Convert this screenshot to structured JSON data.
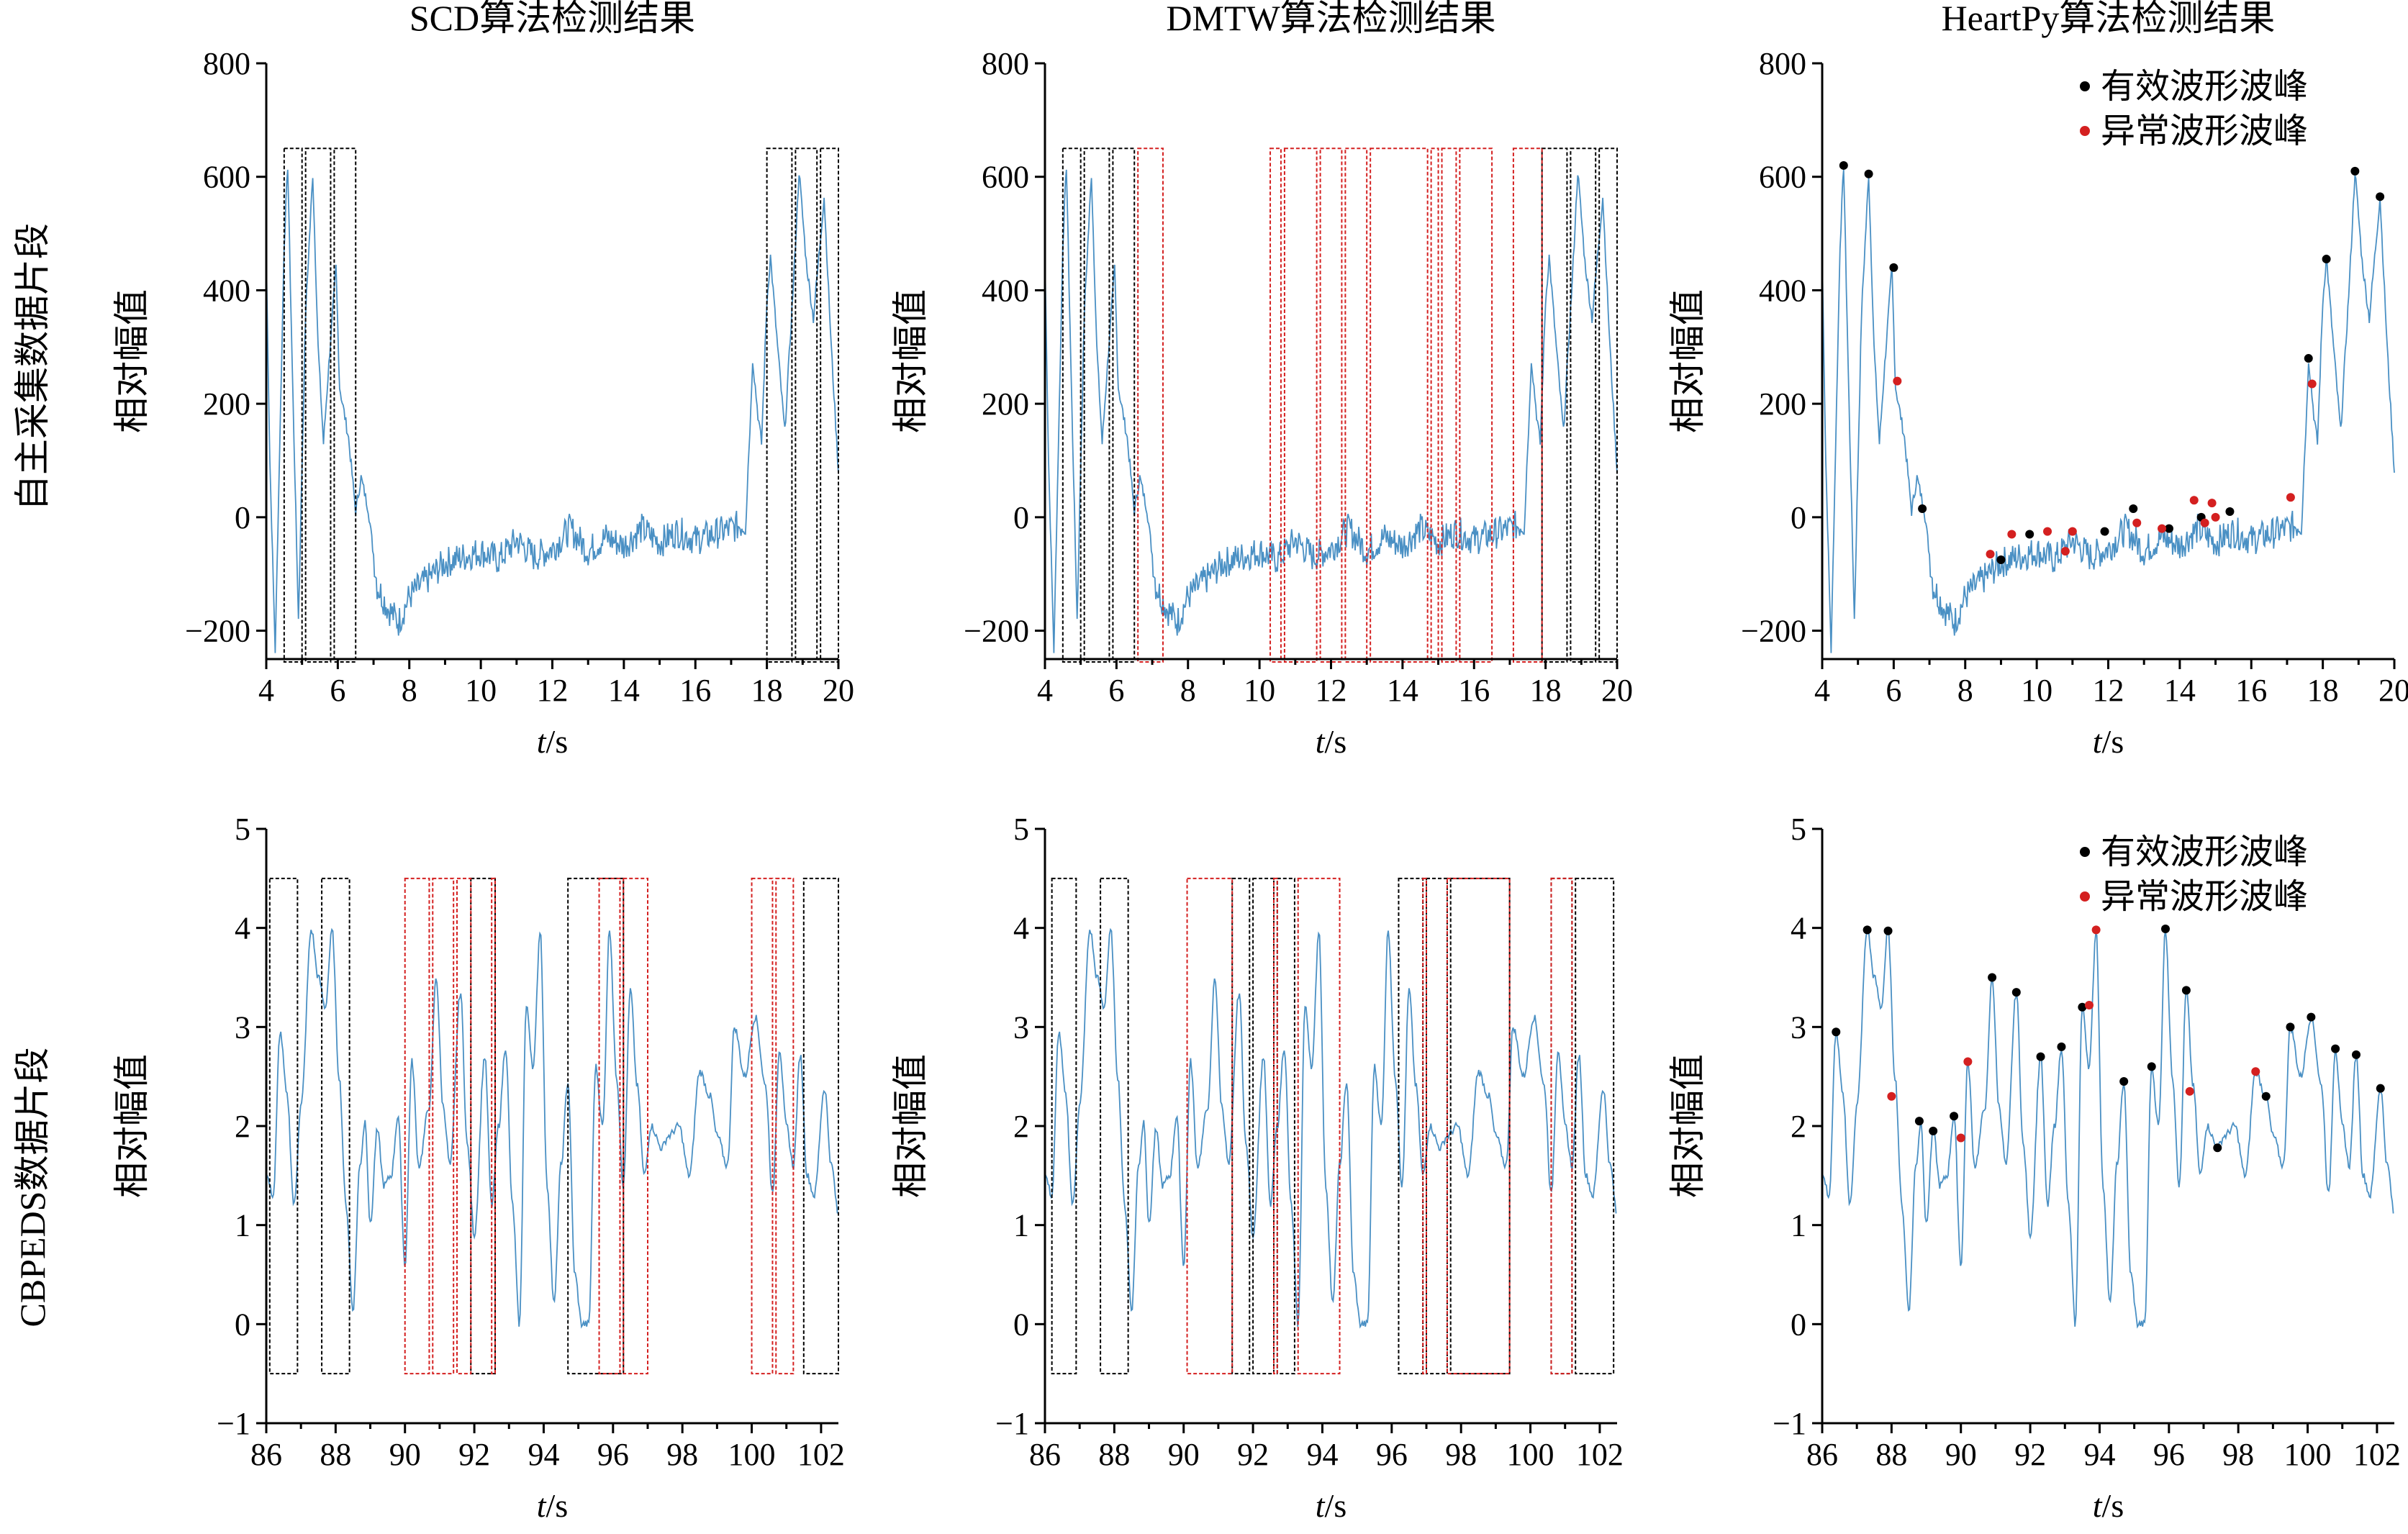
{
  "colors": {
    "signal": "#4a90c4",
    "normal": "#000000",
    "abnormal": "#d42020"
  },
  "row_labels": [
    "自主采集数据片段",
    "CBPEDS数据片段"
  ],
  "ylabel": "相对幅值",
  "xlabel_italic": "t",
  "xlabel_unit": "/s",
  "legend": {
    "normal": "有效波形波峰",
    "abnormal": "异常波形波峰"
  },
  "chart_data": [
    {
      "type": "line",
      "title": "SCD算法检测结果",
      "xlim": [
        4,
        20
      ],
      "ylim": [
        -250,
        800
      ],
      "xticks": [
        4,
        6,
        8,
        10,
        12,
        14,
        16,
        18,
        20
      ],
      "yticks": [
        -200,
        0,
        200,
        400,
        600,
        800
      ],
      "ytick_labels": [
        "−200",
        "0",
        "200",
        "400",
        "600",
        "800"
      ],
      "boxes_black": [
        [
          4.5,
          5.0
        ],
        [
          5.1,
          5.8
        ],
        [
          5.9,
          6.5
        ],
        [
          18.0,
          18.7
        ],
        [
          18.8,
          19.4
        ],
        [
          19.5,
          20.0
        ]
      ],
      "boxes_red": []
    },
    {
      "type": "line",
      "title": "DMTW算法检测结果",
      "xlim": [
        4,
        20
      ],
      "ylim": [
        -250,
        800
      ],
      "xticks": [
        4,
        6,
        8,
        10,
        12,
        14,
        16,
        18,
        20
      ],
      "yticks": [
        -200,
        0,
        200,
        400,
        600,
        800
      ],
      "ytick_labels": [
        "−200",
        "0",
        "200",
        "400",
        "600",
        "800"
      ],
      "boxes_black": [
        [
          4.5,
          5.0
        ],
        [
          5.1,
          5.8
        ],
        [
          5.9,
          6.5
        ],
        [
          17.9,
          18.6
        ],
        [
          18.7,
          19.4
        ],
        [
          19.5,
          20.0
        ]
      ],
      "boxes_red": [
        [
          6.6,
          7.3
        ],
        [
          10.3,
          10.6
        ],
        [
          10.7,
          11.6
        ],
        [
          11.7,
          12.3
        ],
        [
          12.4,
          13.0
        ],
        [
          13.1,
          14.7
        ],
        [
          14.8,
          15.0
        ],
        [
          15.1,
          15.5
        ],
        [
          15.6,
          16.5
        ],
        [
          17.1,
          17.9
        ]
      ]
    },
    {
      "type": "scatter",
      "title": "HeartPy算法检测结果",
      "xlim": [
        4,
        20
      ],
      "ylim": [
        -250,
        800
      ],
      "xticks": [
        4,
        6,
        8,
        10,
        12,
        14,
        16,
        18,
        20
      ],
      "yticks": [
        -200,
        0,
        200,
        400,
        600,
        800
      ],
      "ytick_labels": [
        "−200",
        "0",
        "200",
        "400",
        "600",
        "800"
      ],
      "peaks_black": [
        [
          4.6,
          620
        ],
        [
          5.3,
          605
        ],
        [
          6.0,
          440
        ],
        [
          6.8,
          15
        ],
        [
          9.0,
          -75
        ],
        [
          9.8,
          -30
        ],
        [
          11.9,
          -25
        ],
        [
          12.7,
          15
        ],
        [
          13.7,
          -20
        ],
        [
          14.6,
          0
        ],
        [
          15.4,
          10
        ],
        [
          17.6,
          280
        ],
        [
          18.1,
          455
        ],
        [
          18.9,
          610
        ],
        [
          19.6,
          565
        ]
      ],
      "peaks_red": [
        [
          6.1,
          240
        ],
        [
          8.7,
          -65
        ],
        [
          9.3,
          -30
        ],
        [
          10.3,
          -25
        ],
        [
          10.8,
          -60
        ],
        [
          11.0,
          -25
        ],
        [
          12.8,
          -10
        ],
        [
          13.5,
          -20
        ],
        [
          14.4,
          30
        ],
        [
          14.7,
          -10
        ],
        [
          14.9,
          25
        ],
        [
          15.0,
          0
        ],
        [
          17.1,
          35
        ],
        [
          17.7,
          235
        ]
      ],
      "legend_position": "top-right"
    },
    {
      "type": "line",
      "title": "",
      "xlim": [
        86,
        102.5
      ],
      "ylim": [
        -1,
        5
      ],
      "xticks": [
        86,
        88,
        90,
        92,
        94,
        96,
        98,
        100,
        102
      ],
      "yticks": [
        -1,
        0,
        1,
        2,
        3,
        4,
        5
      ],
      "ytick_labels": [
        "−1",
        "0",
        "1",
        "2",
        "3",
        "4",
        "5"
      ],
      "boxes_black": [
        [
          86.1,
          86.9
        ],
        [
          87.6,
          88.4
        ],
        [
          91.9,
          92.6
        ],
        [
          94.7,
          96.3
        ],
        [
          101.5,
          102.5
        ]
      ],
      "boxes_red": [
        [
          90.0,
          90.7
        ],
        [
          90.8,
          91.4
        ],
        [
          91.5,
          91.9
        ],
        [
          92.5,
          92.6
        ],
        [
          95.6,
          96.2
        ],
        [
          96.3,
          97.0
        ],
        [
          100.0,
          100.6
        ],
        [
          100.7,
          101.2
        ]
      ]
    },
    {
      "type": "line",
      "title": "",
      "xlim": [
        86,
        102.5
      ],
      "ylim": [
        -1,
        5
      ],
      "xticks": [
        86,
        88,
        90,
        92,
        94,
        96,
        98,
        100,
        102
      ],
      "yticks": [
        -1,
        0,
        1,
        2,
        3,
        4,
        5
      ],
      "ytick_labels": [
        "−1",
        "0",
        "1",
        "2",
        "3",
        "4",
        "5"
      ],
      "boxes_black": [
        [
          86.2,
          86.9
        ],
        [
          87.6,
          88.4
        ],
        [
          91.4,
          91.9
        ],
        [
          92.0,
          92.6
        ],
        [
          92.7,
          93.2
        ],
        [
          96.2,
          96.9
        ],
        [
          97.0,
          97.6
        ],
        [
          97.7,
          99.4
        ],
        [
          100.6,
          101.2
        ],
        [
          101.3,
          102.4
        ]
      ],
      "boxes_red": [
        [
          90.1,
          91.4
        ],
        [
          92.6,
          92.7
        ],
        [
          93.3,
          94.5
        ],
        [
          96.9,
          97.0
        ],
        [
          97.6,
          99.4
        ],
        [
          100.6,
          101.2
        ]
      ]
    },
    {
      "type": "scatter",
      "title": "",
      "xlim": [
        86,
        102.5
      ],
      "ylim": [
        -1,
        5
      ],
      "xticks": [
        86,
        88,
        90,
        92,
        94,
        96,
        98,
        100,
        102
      ],
      "yticks": [
        -1,
        0,
        1,
        2,
        3,
        4,
        5
      ],
      "ytick_labels": [
        "−1",
        "0",
        "1",
        "2",
        "3",
        "4",
        "5"
      ],
      "peaks_black": [
        [
          86.4,
          2.95
        ],
        [
          87.3,
          3.98
        ],
        [
          87.9,
          3.97
        ],
        [
          88.8,
          2.05
        ],
        [
          89.2,
          1.95
        ],
        [
          89.8,
          2.1
        ],
        [
          90.9,
          3.5
        ],
        [
          91.6,
          3.35
        ],
        [
          92.3,
          2.7
        ],
        [
          92.9,
          2.8
        ],
        [
          93.5,
          3.2
        ],
        [
          94.7,
          2.45
        ],
        [
          95.5,
          2.6
        ],
        [
          95.9,
          3.99
        ],
        [
          96.5,
          3.37
        ],
        [
          97.4,
          1.78
        ],
        [
          98.8,
          2.3
        ],
        [
          99.5,
          3.0
        ],
        [
          100.1,
          3.1
        ],
        [
          100.8,
          2.78
        ],
        [
          101.4,
          2.72
        ],
        [
          102.1,
          2.38
        ]
      ],
      "peaks_red": [
        [
          88.0,
          2.3
        ],
        [
          90.0,
          1.88
        ],
        [
          90.2,
          2.65
        ],
        [
          93.7,
          3.22
        ],
        [
          93.9,
          3.98
        ],
        [
          96.6,
          2.35
        ],
        [
          98.5,
          2.55
        ]
      ],
      "legend_position": "top-right"
    }
  ]
}
